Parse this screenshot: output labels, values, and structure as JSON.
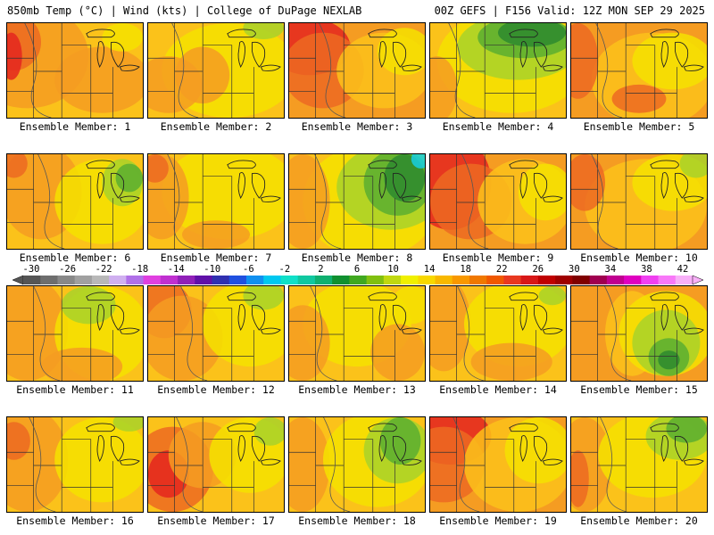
{
  "header": {
    "left": "850mb Temp (°C) | Wind (kts) | College of DuPage NEXLAB",
    "right": "00Z GEFS | F156 Valid: 12Z MON SEP 29 2025"
  },
  "colorbar": {
    "labels": [
      "-30",
      "-26",
      "-22",
      "-18",
      "-14",
      "-10",
      "-6",
      "-2",
      "2",
      "6",
      "10",
      "14",
      "18",
      "22",
      "26",
      "30",
      "34",
      "38",
      "42"
    ],
    "colors": [
      "#555555",
      "#6e6e6e",
      "#888888",
      "#a0a0a0",
      "#b8b8b8",
      "#d0b0f0",
      "#b070e8",
      "#e040e0",
      "#c030d0",
      "#9020b8",
      "#6010a8",
      "#3030b0",
      "#2050e0",
      "#1090f0",
      "#00c8f0",
      "#10e0c8",
      "#10c8a0",
      "#10b070",
      "#109030",
      "#40a820",
      "#80c010",
      "#c0d810",
      "#f0f000",
      "#f8d800",
      "#f8b800",
      "#f89800",
      "#f07800",
      "#f05800",
      "#e83820",
      "#d81818",
      "#c00000",
      "#a00000",
      "#800000",
      "#a00050",
      "#c00090",
      "#e000c0",
      "#f040f0",
      "#f878f8",
      "#f8b0f8"
    ]
  },
  "palette": {
    "red": "#e4261e",
    "orange_red": "#ec6a22",
    "orange": "#f59c22",
    "amber": "#fbc21a",
    "yellow": "#f5e200",
    "lime": "#a8d22a",
    "green": "#5aae30",
    "dark_green": "#2e8a2e",
    "cyan": "#18cfe0"
  },
  "members": [
    {
      "label": "Ensemble Member: 1",
      "base": "amber",
      "blobs": [
        [
          "orange",
          0.15,
          0.35,
          0.45,
          0.55
        ],
        [
          "orange_red",
          0.05,
          0.2,
          0.2,
          0.3
        ],
        [
          "red",
          0.03,
          0.35,
          0.08,
          0.25
        ],
        [
          "orange",
          0.7,
          0.6,
          0.35,
          0.35
        ],
        [
          "yellow",
          0.85,
          0.15,
          0.15,
          0.15
        ]
      ]
    },
    {
      "label": "Ensemble Member: 2",
      "base": "amber",
      "blobs": [
        [
          "yellow",
          0.6,
          0.5,
          0.5,
          0.5
        ],
        [
          "orange",
          0.15,
          0.65,
          0.25,
          0.3
        ],
        [
          "orange",
          0.4,
          0.55,
          0.2,
          0.3
        ],
        [
          "lime",
          0.85,
          0.05,
          0.15,
          0.12
        ]
      ]
    },
    {
      "label": "Ensemble Member: 3",
      "base": "orange",
      "blobs": [
        [
          "red",
          0.15,
          0.25,
          0.3,
          0.3
        ],
        [
          "orange_red",
          0.25,
          0.5,
          0.3,
          0.4
        ],
        [
          "amber",
          0.7,
          0.5,
          0.35,
          0.4
        ],
        [
          "yellow",
          0.85,
          0.3,
          0.2,
          0.25
        ]
      ]
    },
    {
      "label": "Ensemble Member: 4",
      "base": "amber",
      "blobs": [
        [
          "yellow",
          0.6,
          0.4,
          0.55,
          0.55
        ],
        [
          "lime",
          0.65,
          0.25,
          0.45,
          0.35
        ],
        [
          "green",
          0.7,
          0.15,
          0.35,
          0.22
        ],
        [
          "dark_green",
          0.75,
          0.1,
          0.25,
          0.15
        ],
        [
          "orange",
          0.05,
          0.7,
          0.15,
          0.35
        ]
      ]
    },
    {
      "label": "Ensemble Member: 5",
      "base": "orange",
      "blobs": [
        [
          "amber",
          0.6,
          0.6,
          0.45,
          0.5
        ],
        [
          "orange_red",
          0.05,
          0.4,
          0.15,
          0.4
        ],
        [
          "yellow",
          0.75,
          0.4,
          0.3,
          0.3
        ],
        [
          "orange_red",
          0.5,
          0.8,
          0.2,
          0.15
        ]
      ]
    },
    {
      "label": "Ensemble Member: 6",
      "base": "amber",
      "blobs": [
        [
          "orange",
          0.25,
          0.4,
          0.3,
          0.5
        ],
        [
          "orange_red",
          0.05,
          0.1,
          0.1,
          0.15
        ],
        [
          "yellow",
          0.7,
          0.5,
          0.35,
          0.45
        ],
        [
          "lime",
          0.85,
          0.3,
          0.15,
          0.25
        ],
        [
          "green",
          0.9,
          0.25,
          0.1,
          0.15
        ]
      ]
    },
    {
      "label": "Ensemble Member: 7",
      "base": "amber",
      "blobs": [
        [
          "yellow",
          0.6,
          0.4,
          0.5,
          0.5
        ],
        [
          "orange",
          0.1,
          0.45,
          0.2,
          0.45
        ],
        [
          "orange_red",
          0.05,
          0.15,
          0.1,
          0.15
        ],
        [
          "orange",
          0.5,
          0.85,
          0.25,
          0.15
        ]
      ]
    },
    {
      "label": "Ensemble Member: 8",
      "base": "amber",
      "blobs": [
        [
          "yellow",
          0.6,
          0.5,
          0.5,
          0.6
        ],
        [
          "lime",
          0.75,
          0.35,
          0.4,
          0.45
        ],
        [
          "green",
          0.8,
          0.3,
          0.25,
          0.35
        ],
        [
          "dark_green",
          0.85,
          0.25,
          0.15,
          0.25
        ],
        [
          "cyan",
          0.97,
          0.05,
          0.07,
          0.1
        ],
        [
          "orange",
          0.1,
          0.5,
          0.2,
          0.5
        ]
      ]
    },
    {
      "label": "Ensemble Member: 9",
      "base": "orange",
      "blobs": [
        [
          "red",
          0.15,
          0.3,
          0.3,
          0.5
        ],
        [
          "orange_red",
          0.3,
          0.5,
          0.3,
          0.4
        ],
        [
          "amber",
          0.7,
          0.5,
          0.35,
          0.45
        ],
        [
          "yellow",
          0.85,
          0.4,
          0.2,
          0.3
        ]
      ]
    },
    {
      "label": "Ensemble Member: 10",
      "base": "orange",
      "blobs": [
        [
          "amber",
          0.55,
          0.55,
          0.45,
          0.5
        ],
        [
          "yellow",
          0.75,
          0.3,
          0.3,
          0.3
        ],
        [
          "lime",
          0.92,
          0.1,
          0.12,
          0.15
        ],
        [
          "orange_red",
          0.1,
          0.3,
          0.15,
          0.3
        ]
      ]
    },
    {
      "label": "Ensemble Member: 11",
      "base": "amber",
      "blobs": [
        [
          "orange",
          0.15,
          0.45,
          0.3,
          0.55
        ],
        [
          "yellow",
          0.7,
          0.5,
          0.35,
          0.5
        ],
        [
          "lime",
          0.6,
          0.2,
          0.2,
          0.2
        ],
        [
          "orange",
          0.55,
          0.85,
          0.3,
          0.2
        ]
      ]
    },
    {
      "label": "Ensemble Member: 12",
      "base": "amber",
      "blobs": [
        [
          "orange_red",
          0.12,
          0.25,
          0.2,
          0.3
        ],
        [
          "orange",
          0.25,
          0.55,
          0.3,
          0.45
        ],
        [
          "yellow",
          0.75,
          0.4,
          0.35,
          0.45
        ],
        [
          "lime",
          0.85,
          0.1,
          0.15,
          0.15
        ]
      ]
    },
    {
      "label": "Ensemble Member: 13",
      "base": "amber",
      "blobs": [
        [
          "yellow",
          0.5,
          0.4,
          0.4,
          0.45
        ],
        [
          "orange",
          0.1,
          0.6,
          0.2,
          0.4
        ],
        [
          "orange",
          0.8,
          0.7,
          0.2,
          0.3
        ],
        [
          "yellow",
          0.9,
          0.2,
          0.15,
          0.2
        ]
      ]
    },
    {
      "label": "Ensemble Member: 14",
      "base": "amber",
      "blobs": [
        [
          "orange",
          0.1,
          0.4,
          0.2,
          0.5
        ],
        [
          "yellow",
          0.65,
          0.4,
          0.4,
          0.45
        ],
        [
          "orange",
          0.6,
          0.8,
          0.3,
          0.2
        ],
        [
          "lime",
          0.9,
          0.1,
          0.1,
          0.1
        ]
      ]
    },
    {
      "label": "Ensemble Member: 15",
      "base": "orange",
      "blobs": [
        [
          "amber",
          0.45,
          0.5,
          0.2,
          0.45
        ],
        [
          "yellow",
          0.7,
          0.5,
          0.35,
          0.45
        ],
        [
          "lime",
          0.7,
          0.6,
          0.25,
          0.35
        ],
        [
          "green",
          0.72,
          0.75,
          0.15,
          0.2
        ],
        [
          "dark_green",
          0.72,
          0.78,
          0.08,
          0.1
        ]
      ]
    },
    {
      "label": "Ensemble Member: 16",
      "base": "amber",
      "blobs": [
        [
          "orange",
          0.15,
          0.45,
          0.3,
          0.55
        ],
        [
          "orange_red",
          0.05,
          0.25,
          0.12,
          0.2
        ],
        [
          "yellow",
          0.7,
          0.45,
          0.35,
          0.45
        ],
        [
          "lime",
          0.9,
          0.05,
          0.12,
          0.1
        ]
      ]
    },
    {
      "label": "Ensemble Member: 17",
      "base": "amber",
      "blobs": [
        [
          "orange_red",
          0.18,
          0.55,
          0.3,
          0.45
        ],
        [
          "red",
          0.15,
          0.6,
          0.15,
          0.25
        ],
        [
          "orange",
          0.4,
          0.4,
          0.25,
          0.35
        ],
        [
          "yellow",
          0.75,
          0.4,
          0.3,
          0.4
        ],
        [
          "lime",
          0.9,
          0.15,
          0.12,
          0.15
        ]
      ]
    },
    {
      "label": "Ensemble Member: 18",
      "base": "amber",
      "blobs": [
        [
          "orange",
          0.1,
          0.5,
          0.2,
          0.5
        ],
        [
          "yellow",
          0.65,
          0.45,
          0.4,
          0.5
        ],
        [
          "lime",
          0.8,
          0.35,
          0.25,
          0.35
        ],
        [
          "green",
          0.82,
          0.25,
          0.15,
          0.25
        ]
      ]
    },
    {
      "label": "Ensemble Member: 19",
      "base": "orange",
      "blobs": [
        [
          "red",
          0.15,
          0.2,
          0.3,
          0.3
        ],
        [
          "orange_red",
          0.1,
          0.5,
          0.3,
          0.4
        ],
        [
          "amber",
          0.65,
          0.5,
          0.4,
          0.5
        ],
        [
          "yellow",
          0.8,
          0.35,
          0.25,
          0.35
        ]
      ]
    },
    {
      "label": "Ensemble Member: 20",
      "base": "amber",
      "blobs": [
        [
          "orange",
          0.1,
          0.5,
          0.2,
          0.5
        ],
        [
          "orange_red",
          0.05,
          0.65,
          0.08,
          0.3
        ],
        [
          "yellow",
          0.6,
          0.4,
          0.4,
          0.45
        ],
        [
          "lime",
          0.8,
          0.2,
          0.25,
          0.25
        ],
        [
          "green",
          0.85,
          0.12,
          0.15,
          0.15
        ]
      ]
    }
  ]
}
